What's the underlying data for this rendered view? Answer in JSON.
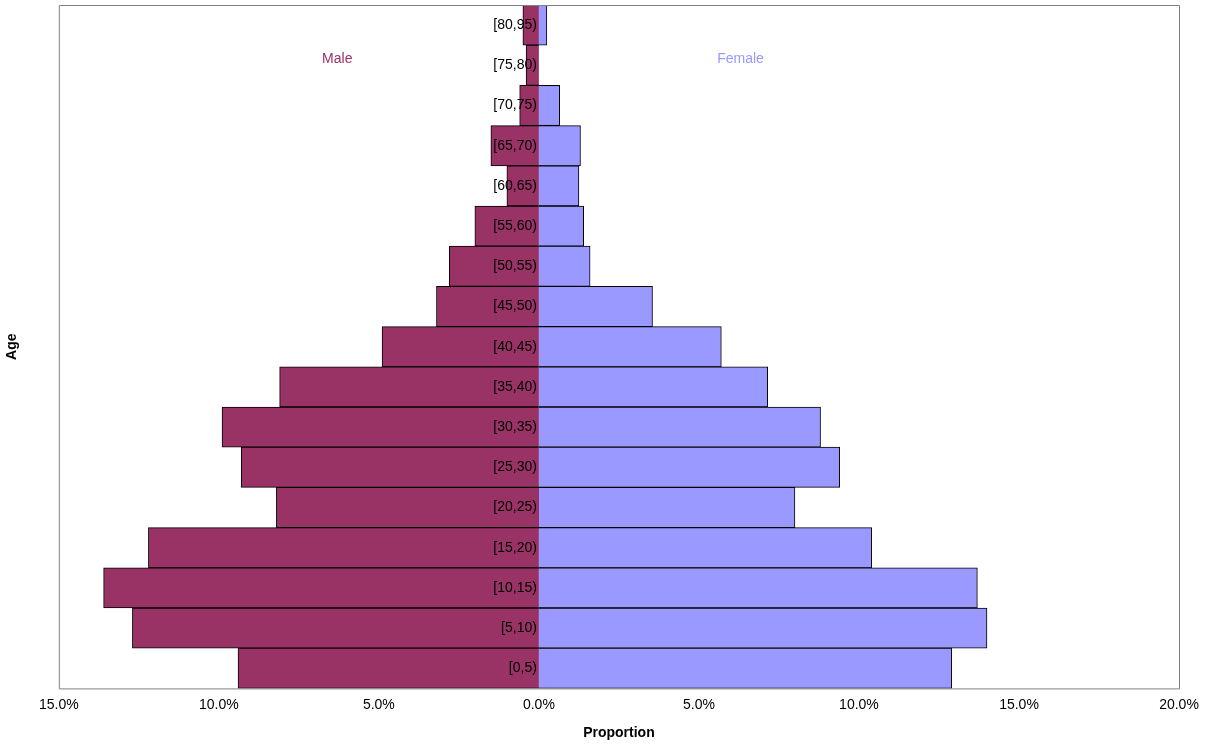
{
  "chart_data": {
    "type": "bar",
    "orientation": "horizontal",
    "xlabel": "Proportion",
    "ylabel": "Age",
    "categories": [
      "[80,95)",
      "[75,80)",
      "[70,75)",
      "[65,70)",
      "[60,65)",
      "[55,60)",
      "[50,55)",
      "[45,50)",
      "[40,45)",
      "[35,40)",
      "[30,35)",
      "[25,30)",
      "[20,25)",
      "[15,20)",
      "[10,15)",
      "[5,10)",
      "[0,5)"
    ],
    "series": [
      {
        "name": "Male",
        "color": "#993366",
        "values": [
          -0.5,
          -0.4,
          -0.6,
          -1.5,
          -1.0,
          -2.0,
          -2.8,
          -3.2,
          -4.9,
          -8.1,
          -9.9,
          -9.3,
          -8.2,
          -12.2,
          -13.6,
          -12.7,
          -9.4
        ]
      },
      {
        "name": "Female",
        "color": "#9999ff",
        "values": [
          0.25,
          0,
          0.65,
          1.3,
          1.25,
          1.4,
          1.6,
          3.55,
          5.7,
          7.15,
          8.8,
          9.4,
          8.0,
          10.4,
          13.7,
          14.0,
          12.9
        ]
      }
    ],
    "xlim": [
      -15,
      20
    ],
    "xticks": [
      {
        "value": -15,
        "label": "15.0%"
      },
      {
        "value": -10,
        "label": "10.0%"
      },
      {
        "value": -5,
        "label": "5.0%"
      },
      {
        "value": 0,
        "label": "0.0%"
      },
      {
        "value": 5,
        "label": "5.0%"
      },
      {
        "value": 10,
        "label": "10.0%"
      },
      {
        "value": 15,
        "label": "15.0%"
      },
      {
        "value": 20,
        "label": "20.0%"
      }
    ],
    "stacked": true,
    "grid": false,
    "legend": false
  }
}
